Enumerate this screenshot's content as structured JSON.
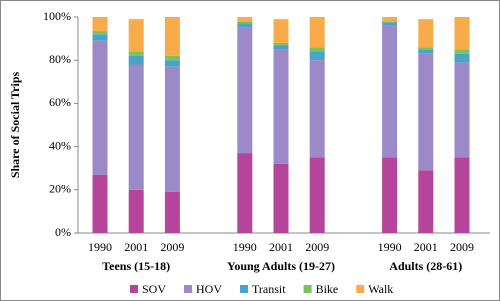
{
  "chart_data": {
    "type": "stacked-bar",
    "y_label": "Share of Social Trips",
    "categories": [
      "1990",
      "2001",
      "2009",
      "1990",
      "2001",
      "2009",
      "1990",
      "2001",
      "2009"
    ],
    "groups": [
      "Teens (15-18)",
      "Young Adults (19-27)",
      "Adults (28-61)"
    ],
    "series": [
      {
        "name": "SOV",
        "color": "#b5459b",
        "values": [
          27,
          20,
          19,
          37,
          32,
          35,
          35,
          29,
          35
        ]
      },
      {
        "name": "HOV",
        "color": "#9b8ac7",
        "values": [
          62,
          58,
          58,
          58,
          53,
          45,
          61,
          54,
          44
        ]
      },
      {
        "name": "Transit",
        "color": "#4aa3c9",
        "values": [
          3,
          4,
          3,
          2,
          2,
          4,
          1.5,
          2,
          4
        ]
      },
      {
        "name": "Bike",
        "color": "#79c35a",
        "values": [
          1.5,
          2,
          2,
          1,
          1,
          2,
          0.5,
          1,
          2
        ]
      },
      {
        "name": "Walk",
        "color": "#f8ab4a",
        "values": [
          6.5,
          15,
          18,
          2,
          11,
          14,
          2,
          13,
          15
        ]
      }
    ],
    "ylim": [
      0,
      100
    ],
    "yticks": [
      {
        "value": 0,
        "label": "0%"
      },
      {
        "value": 20,
        "label": "20%"
      },
      {
        "value": 40,
        "label": "40%"
      },
      {
        "value": 60,
        "label": "60%"
      },
      {
        "value": 80,
        "label": "80%"
      },
      {
        "value": 100,
        "label": "100%"
      }
    ]
  }
}
